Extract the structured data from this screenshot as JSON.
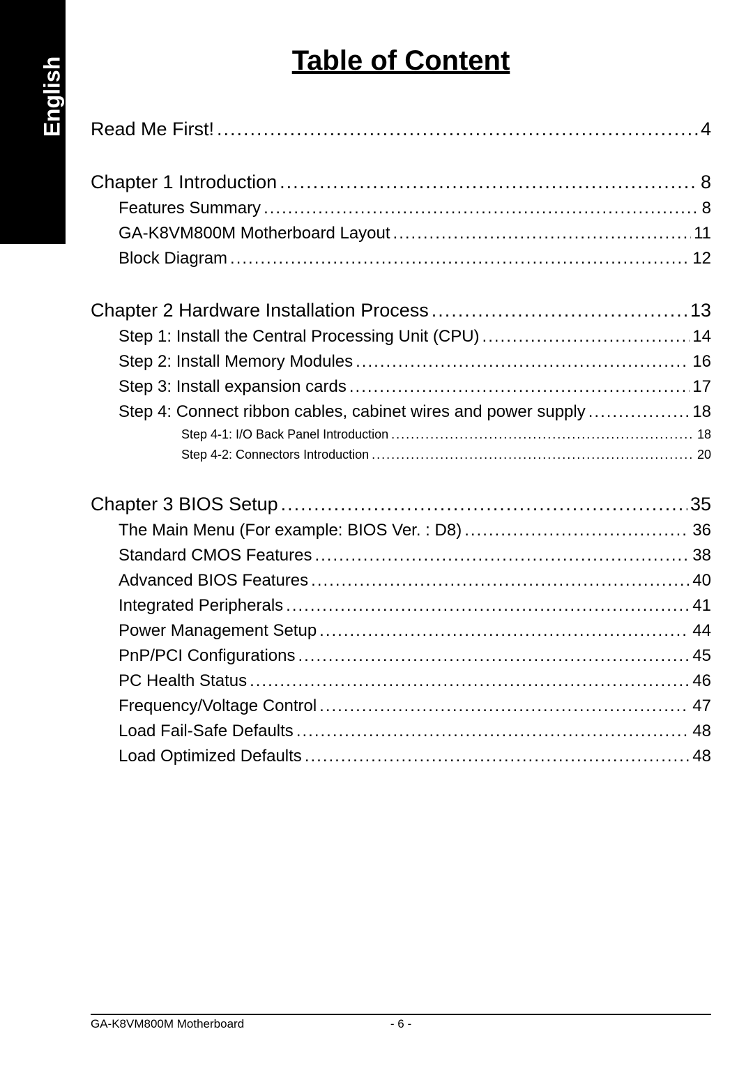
{
  "sidebar": {
    "label": "English"
  },
  "title": "Table of Content",
  "toc": [
    {
      "level": 0,
      "label": "Read Me First!",
      "page": "4",
      "spacer": true
    },
    {
      "level": 0,
      "label": "Chapter 1  Introduction",
      "page": "8"
    },
    {
      "level": 1,
      "label": "Features Summary",
      "page": "8"
    },
    {
      "level": 1,
      "label": "GA-K8VM800M Motherboard Layout",
      "page": "11"
    },
    {
      "level": 1,
      "label": "Block Diagram",
      "page": "12",
      "spacer": true
    },
    {
      "level": 0,
      "label": "Chapter 2  Hardware Installation Process",
      "page": "13"
    },
    {
      "level": 1,
      "label": "Step 1: Install the Central Processing Unit (CPU)",
      "page": "14"
    },
    {
      "level": 1,
      "label": "Step 2: Install Memory Modules",
      "page": "16"
    },
    {
      "level": 1,
      "label": "Step 3: Install expansion cards",
      "page": "17"
    },
    {
      "level": 1,
      "label": "Step 4: Connect ribbon cables, cabinet wires and power supply",
      "page": "18"
    },
    {
      "level": 2,
      "label": "Step 4-1: I/O Back Panel Introduction",
      "page": "18"
    },
    {
      "level": 2,
      "label": "Step 4-2: Connectors Introduction",
      "page": "20",
      "spacer": true
    },
    {
      "level": 0,
      "label": "Chapter 3 BIOS Setup",
      "page": "35"
    },
    {
      "level": 1,
      "label": "The Main Menu (For example: BIOS Ver. : D8)",
      "page": "36"
    },
    {
      "level": 1,
      "label": "Standard CMOS Features",
      "page": "38"
    },
    {
      "level": 1,
      "label": "Advanced BIOS Features",
      "page": "40"
    },
    {
      "level": 1,
      "label": "Integrated  Peripherals",
      "page": "41"
    },
    {
      "level": 1,
      "label": "Power Management Setup",
      "page": "44"
    },
    {
      "level": 1,
      "label": "PnP/PCI Configurations",
      "page": "45"
    },
    {
      "level": 1,
      "label": "PC Health Status",
      "page": "46"
    },
    {
      "level": 1,
      "label": "Frequency/Voltage Control",
      "page": "47"
    },
    {
      "level": 1,
      "label": "Load Fail-Safe Defaults",
      "page": "48"
    },
    {
      "level": 1,
      "label": "Load Optimized Defaults",
      "page": "48"
    }
  ],
  "footer": {
    "left": "GA-K8VM800M Motherboard",
    "center": "- 6 -"
  },
  "styles": {
    "background_color": "#ffffff",
    "sidebar_bg": "#000000",
    "sidebar_text_color": "#ffffff",
    "text_color": "#000000",
    "title_fontsize": 40,
    "level0_fontsize": 27,
    "level1_fontsize": 24,
    "level2_fontsize": 18,
    "footer_fontsize": 17
  }
}
